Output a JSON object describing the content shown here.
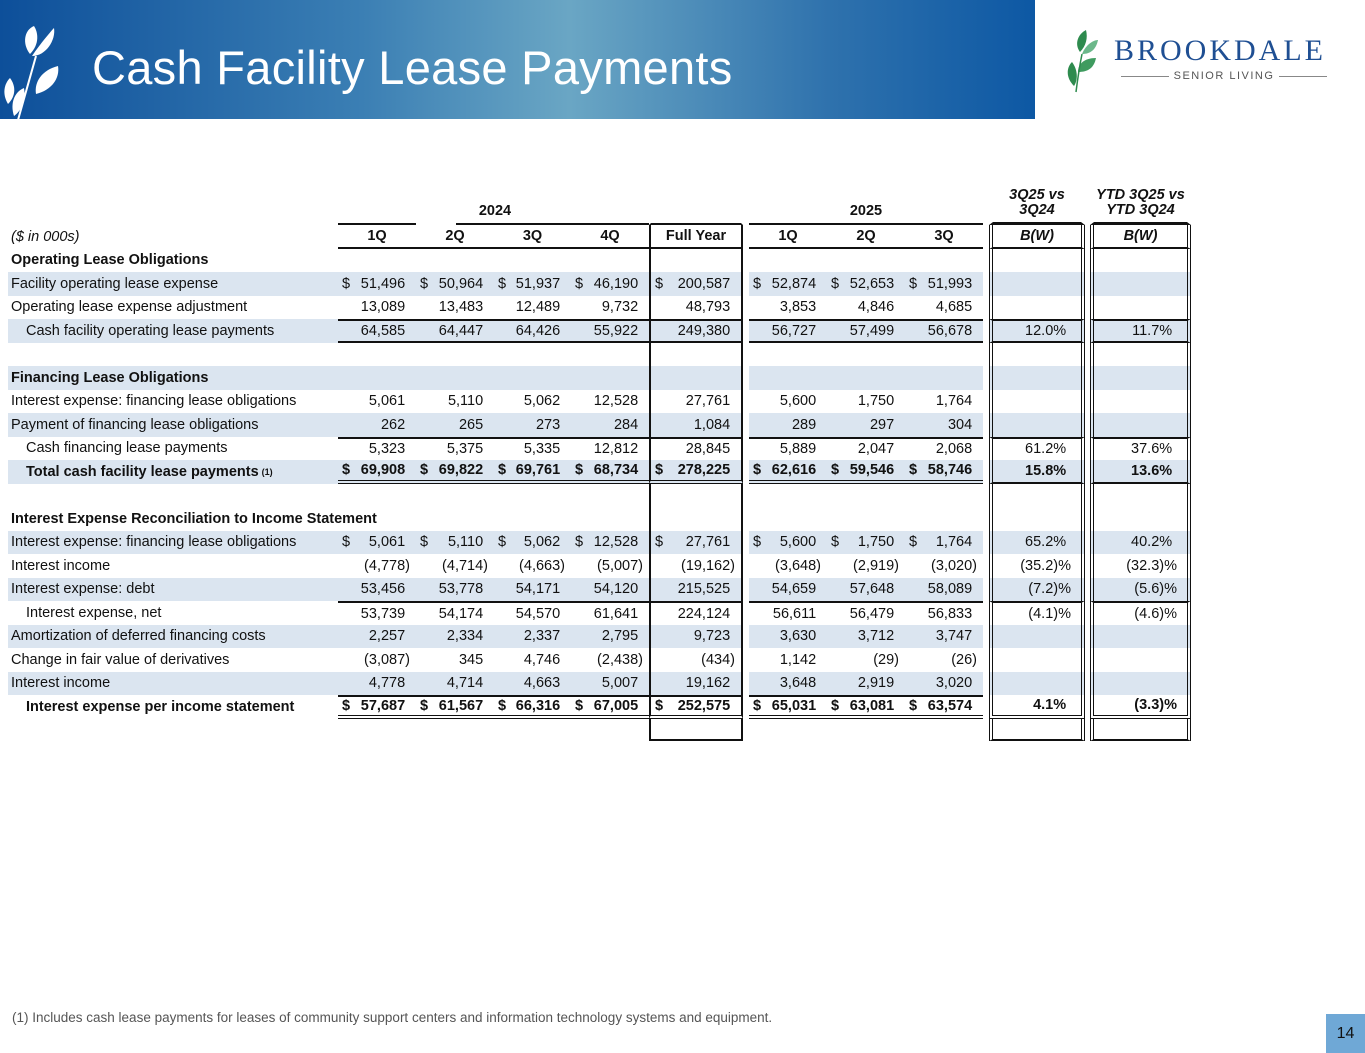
{
  "header": {
    "title": "Cash Facility Lease Payments",
    "brand_name": "BROOKDALE",
    "brand_sub": "SENIOR LIVING",
    "brand_color": "#1f4f93"
  },
  "table": {
    "units": "($ in 000s)",
    "year_2024": "2024",
    "year_2025": "2025",
    "cmp1_header": [
      "3Q25 vs",
      "3Q24"
    ],
    "cmp2_header": [
      "YTD 3Q25 vs",
      "YTD 3Q24"
    ],
    "columns": [
      "1Q",
      "2Q",
      "3Q",
      "4Q",
      "Full Year",
      "1Q",
      "2Q",
      "3Q",
      "B(W)",
      "B(W)"
    ],
    "currency_symbol": "$",
    "rows": [
      {
        "label": "Operating Lease Obligations",
        "type": "section"
      },
      {
        "label": "Facility operating lease expense",
        "dollar": true,
        "values": [
          "51,496",
          "50,964",
          "51,937",
          "46,190",
          "200,587",
          "52,874",
          "52,653",
          "51,993",
          "",
          ""
        ]
      },
      {
        "label": "Operating lease expense adjustment",
        "values": [
          "13,089",
          "13,483",
          "12,489",
          "9,732",
          "48,793",
          "3,853",
          "4,846",
          "4,685",
          "",
          ""
        ]
      },
      {
        "label": "Cash facility operating lease payments",
        "indent": true,
        "values": [
          "64,585",
          "64,447",
          "64,426",
          "55,922",
          "249,380",
          "56,727",
          "57,499",
          "56,678",
          "12.0%",
          "11.7%"
        ]
      },
      {
        "label": "",
        "type": "blank"
      },
      {
        "label": "Financing Lease Obligations",
        "type": "section"
      },
      {
        "label": "Interest expense: financing lease obligations",
        "values": [
          "5,061",
          "5,110",
          "5,062",
          "12,528",
          "27,761",
          "5,600",
          "1,750",
          "1,764",
          "",
          ""
        ]
      },
      {
        "label": "Payment of financing lease obligations",
        "values": [
          "262",
          "265",
          "273",
          "284",
          "1,084",
          "289",
          "297",
          "304",
          "",
          ""
        ]
      },
      {
        "label": "Cash financing lease payments",
        "indent": true,
        "values": [
          "5,323",
          "5,375",
          "5,335",
          "12,812",
          "28,845",
          "5,889",
          "2,047",
          "2,068",
          "61.2%",
          "37.6%"
        ]
      },
      {
        "label": "Total cash facility lease payments",
        "footnote": "(1)",
        "indent": true,
        "bold": true,
        "dollar": true,
        "values": [
          "69,908",
          "69,822",
          "69,761",
          "68,734",
          "278,225",
          "62,616",
          "59,546",
          "58,746",
          "15.8%",
          "13.6%"
        ]
      },
      {
        "label": "",
        "type": "blank"
      },
      {
        "label": "Interest Expense Reconciliation to Income Statement",
        "type": "section"
      },
      {
        "label": "Interest expense: financing lease obligations",
        "dollar": true,
        "values": [
          "5,061",
          "5,110",
          "5,062",
          "12,528",
          "27,761",
          "5,600",
          "1,750",
          "1,764",
          "65.2%",
          "40.2%"
        ]
      },
      {
        "label": "Interest income",
        "values": [
          "(4,778)",
          "(4,714)",
          "(4,663)",
          "(5,007)",
          "(19,162)",
          "(3,648)",
          "(2,919)",
          "(3,020)",
          "(35.2)%",
          "(32.3)%"
        ]
      },
      {
        "label": "Interest expense: debt",
        "values": [
          "53,456",
          "53,778",
          "54,171",
          "54,120",
          "215,525",
          "54,659",
          "57,648",
          "58,089",
          "(7.2)%",
          "(5.6)%"
        ]
      },
      {
        "label": "Interest expense, net",
        "indent": true,
        "values": [
          "53,739",
          "54,174",
          "54,570",
          "61,641",
          "224,124",
          "56,611",
          "56,479",
          "56,833",
          "(4.1)%",
          "(4.6)%"
        ]
      },
      {
        "label": "Amortization of deferred financing costs",
        "values": [
          "2,257",
          "2,334",
          "2,337",
          "2,795",
          "9,723",
          "3,630",
          "3,712",
          "3,747",
          "",
          ""
        ]
      },
      {
        "label": "Change in fair value of derivatives",
        "values": [
          "(3,087)",
          "345",
          "4,746",
          "(2,438)",
          "(434)",
          "1,142",
          "(29)",
          "(26)",
          "",
          ""
        ]
      },
      {
        "label": "Interest income",
        "values": [
          "4,778",
          "4,714",
          "4,663",
          "5,007",
          "19,162",
          "3,648",
          "2,919",
          "3,020",
          "",
          ""
        ]
      },
      {
        "label": "Interest expense per income statement",
        "indent": true,
        "bold": true,
        "dollar": true,
        "values": [
          "57,687",
          "61,567",
          "66,316",
          "67,005",
          "252,575",
          "65,031",
          "63,081",
          "63,574",
          "4.1%",
          "(3.3)%"
        ]
      }
    ]
  },
  "footnote": "(1)  Includes cash lease payments for leases of community support centers and information technology systems and equipment.",
  "page_number": "14"
}
